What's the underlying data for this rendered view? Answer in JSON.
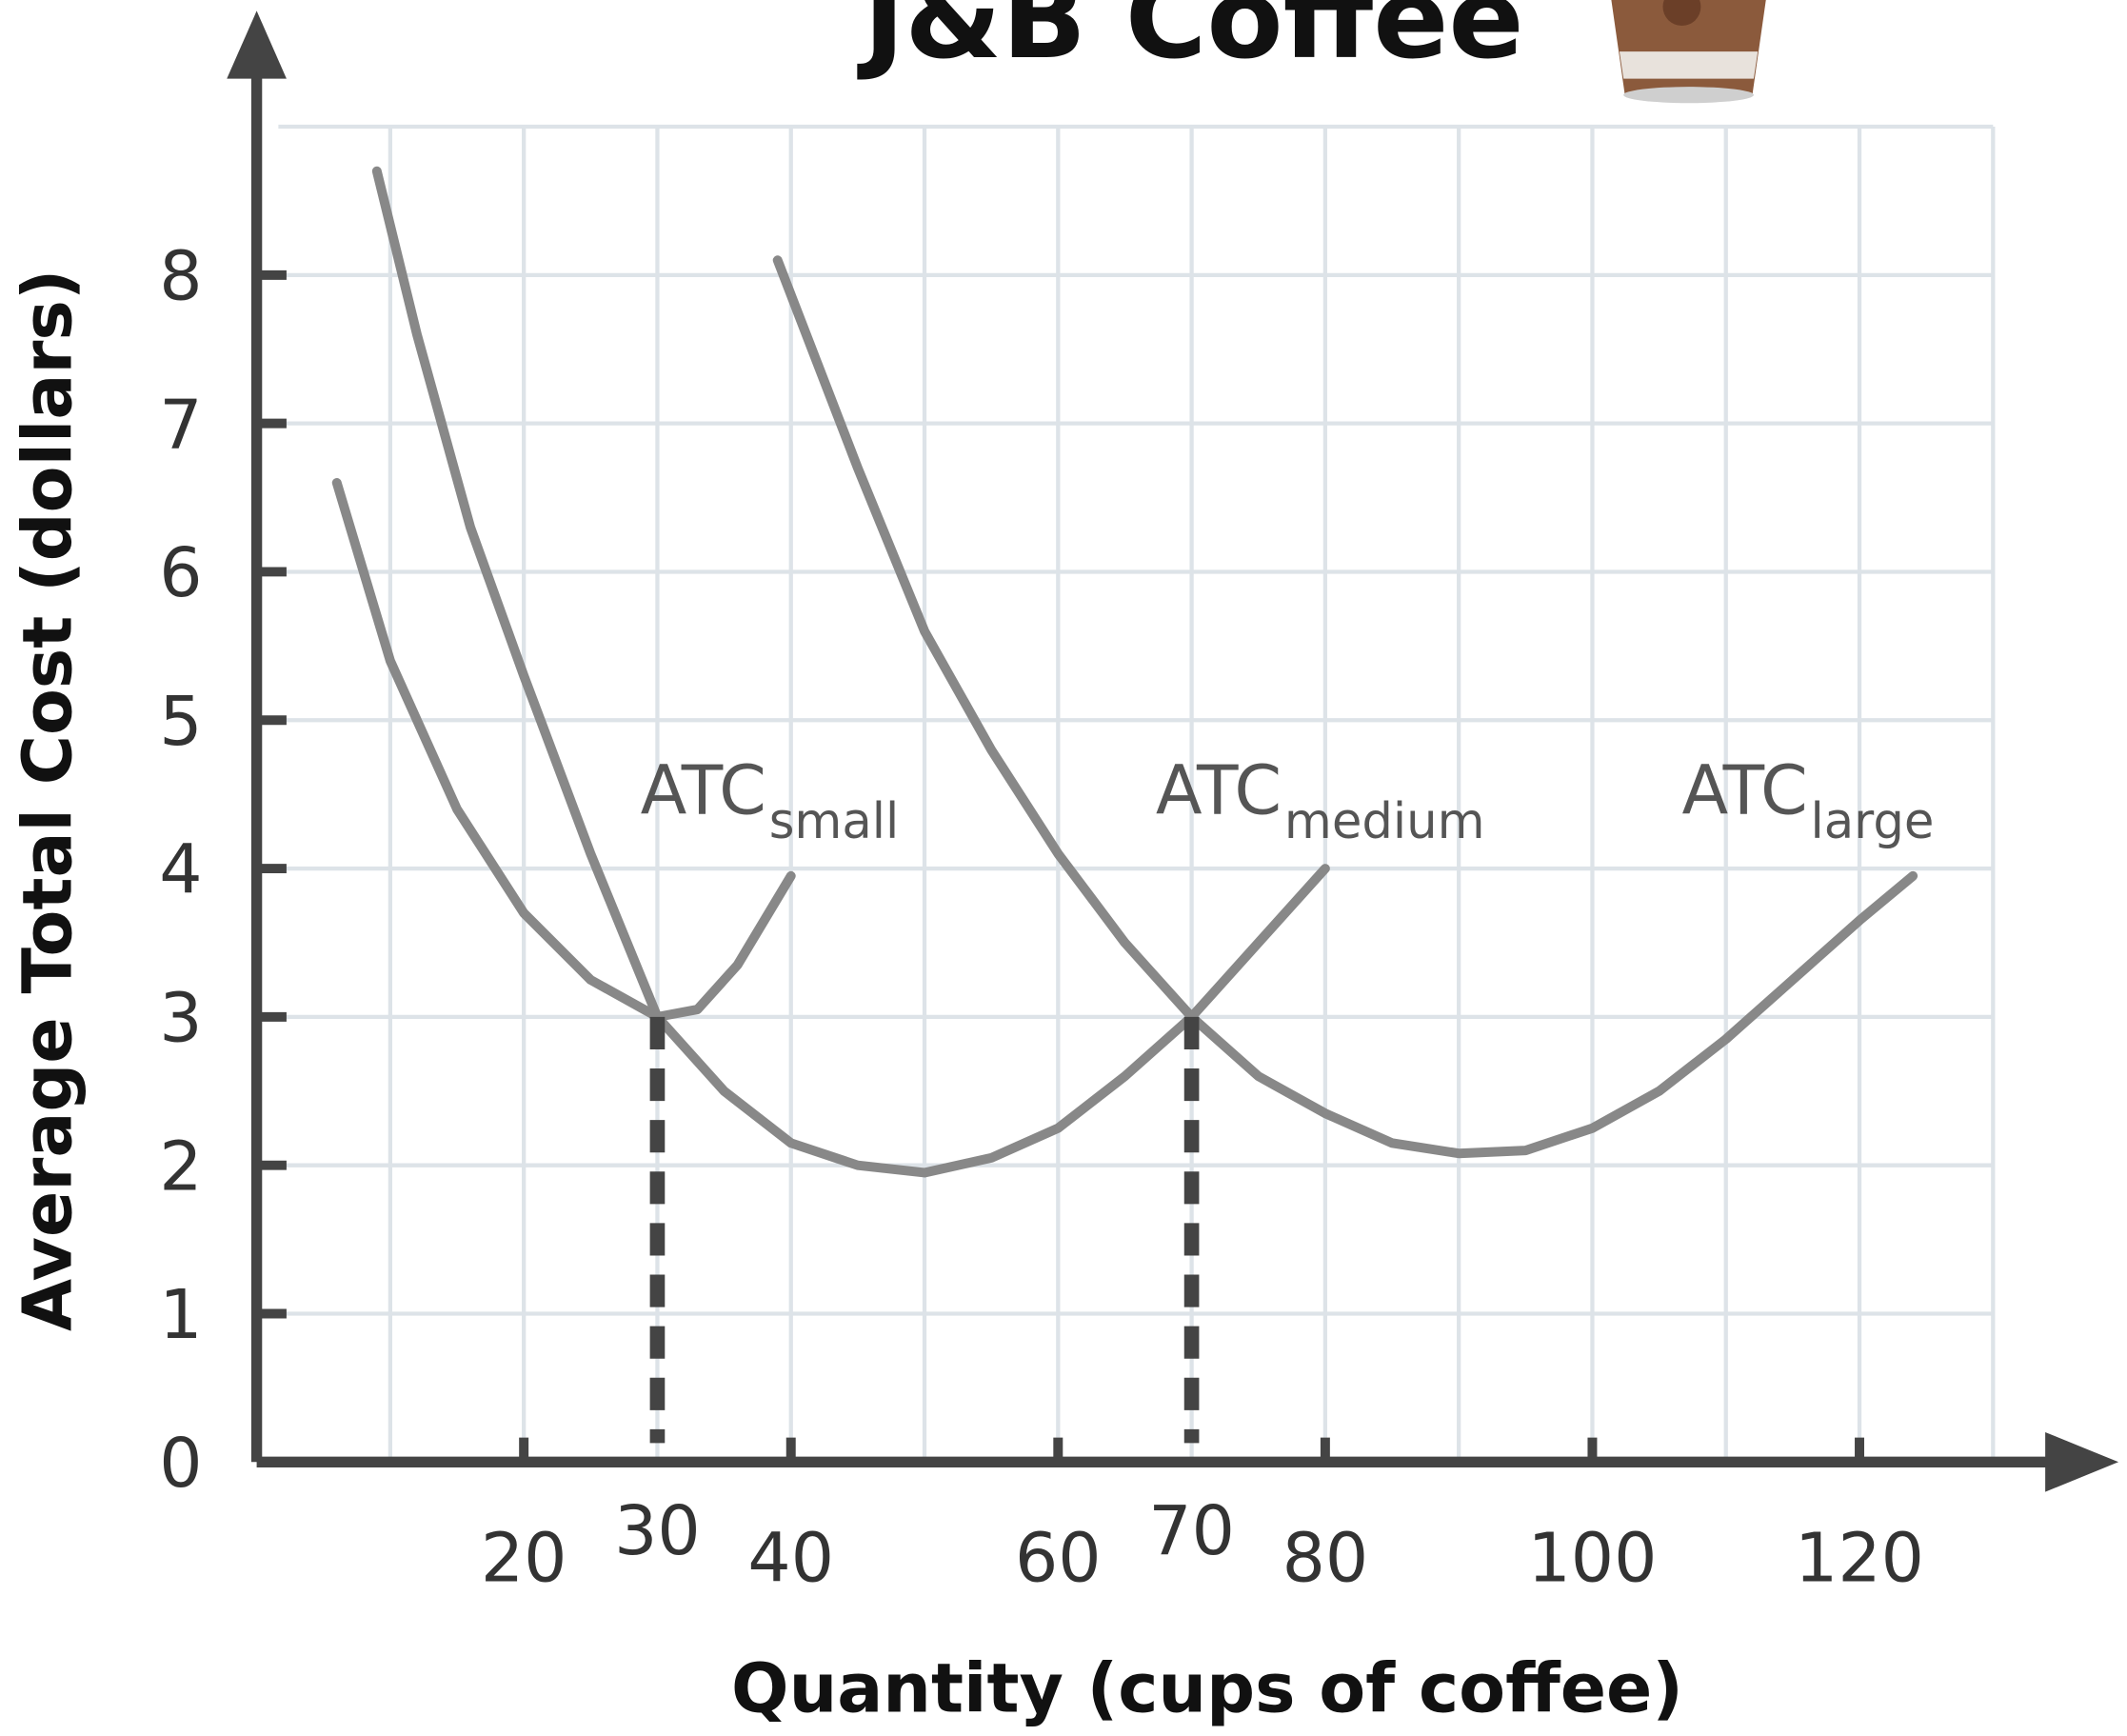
{
  "chart_data": {
    "type": "line",
    "title": "J&B Coffee",
    "x_label": "Quantity (cups of coffee)",
    "y_label": "Average Total Cost (dollars)",
    "xlim": [
      0,
      130
    ],
    "ylim": [
      0,
      9
    ],
    "xticks": [
      20,
      40,
      60,
      80,
      100,
      120
    ],
    "yticks": [
      0,
      1,
      2,
      3,
      4,
      5,
      6,
      7,
      8
    ],
    "xgrid": [
      10,
      20,
      30,
      40,
      50,
      60,
      70,
      80,
      90,
      100,
      110,
      120,
      130
    ],
    "ygrid": [
      1,
      2,
      3,
      4,
      5,
      6,
      7,
      8,
      9
    ],
    "grid": true,
    "series": [
      {
        "name": "ATC",
        "subscript": "small",
        "color": "#888888",
        "x": [
          6,
          10,
          15,
          20,
          25,
          30,
          33,
          36,
          40
        ],
        "values": [
          6.6,
          5.4,
          4.4,
          3.7,
          3.25,
          3.0,
          3.05,
          3.35,
          3.95
        ]
      },
      {
        "name": "ATC",
        "subscript": "medium",
        "color": "#888888",
        "x": [
          9,
          12,
          16,
          20,
          25,
          30,
          35,
          40,
          45,
          50,
          55,
          60,
          65,
          70,
          75,
          80
        ],
        "values": [
          8.7,
          7.6,
          6.3,
          5.3,
          4.1,
          3.0,
          2.5,
          2.15,
          2.0,
          1.95,
          2.05,
          2.25,
          2.6,
          3.0,
          3.5,
          4.0
        ]
      },
      {
        "name": "ATC",
        "subscript": "large",
        "color": "#888888",
        "x": [
          39,
          45,
          50,
          55,
          60,
          65,
          70,
          75,
          80,
          85,
          90,
          95,
          100,
          105,
          110,
          115,
          120,
          124
        ],
        "values": [
          8.1,
          6.7,
          5.6,
          4.8,
          4.1,
          3.5,
          3.0,
          2.6,
          2.35,
          2.15,
          2.08,
          2.1,
          2.25,
          2.5,
          2.85,
          3.25,
          3.65,
          3.95
        ]
      }
    ],
    "dashed_lines": [
      {
        "x": 30,
        "y": 3
      },
      {
        "x": 70,
        "y": 3
      }
    ]
  }
}
